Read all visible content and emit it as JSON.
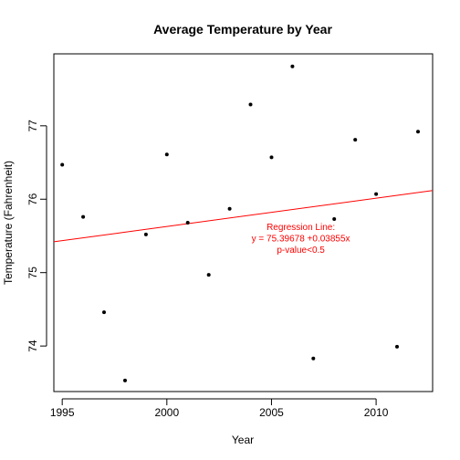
{
  "chart_data": {
    "type": "scatter",
    "title": "Average Temperature by Year",
    "xlabel": "Year",
    "ylabel": "Temperature (Fahrenheit)",
    "xlim": [
      1994.6,
      2012.7
    ],
    "ylim": [
      73.38,
      77.98
    ],
    "x_ticks": [
      1995,
      2000,
      2005,
      2010
    ],
    "x_tick_labels": [
      "1995",
      "2000",
      "2005",
      "2010"
    ],
    "y_ticks": [
      74,
      75,
      76,
      77
    ],
    "y_tick_labels": [
      "74",
      "75",
      "76",
      "77"
    ],
    "points": [
      {
        "x": 1995,
        "y": 76.47
      },
      {
        "x": 1996,
        "y": 75.76
      },
      {
        "x": 1997,
        "y": 74.46
      },
      {
        "x": 1998,
        "y": 73.53
      },
      {
        "x": 1999,
        "y": 75.52
      },
      {
        "x": 2000,
        "y": 76.61
      },
      {
        "x": 2001,
        "y": 75.68
      },
      {
        "x": 2002,
        "y": 74.97
      },
      {
        "x": 2003,
        "y": 75.87
      },
      {
        "x": 2004,
        "y": 77.29
      },
      {
        "x": 2005,
        "y": 76.57
      },
      {
        "x": 2006,
        "y": 77.81
      },
      {
        "x": 2007,
        "y": 73.83
      },
      {
        "x": 2008,
        "y": 75.73
      },
      {
        "x": 2009,
        "y": 76.81
      },
      {
        "x": 2010,
        "y": 76.07
      },
      {
        "x": 2011,
        "y": 73.99
      },
      {
        "x": 2012,
        "y": 76.92
      }
    ],
    "regression": {
      "intercept": 75.39678,
      "slope": 0.03855,
      "x_origin": 1994,
      "color": "#ff0000"
    },
    "annotation": {
      "lines": [
        "Regression Line:",
        "y = 75.39678 +0.03855x",
        "p-value<0.5"
      ],
      "color": "#ff0000",
      "anchor_x": 2006.4,
      "anchor_y": 75.58
    },
    "grid": false,
    "legend": "none"
  }
}
